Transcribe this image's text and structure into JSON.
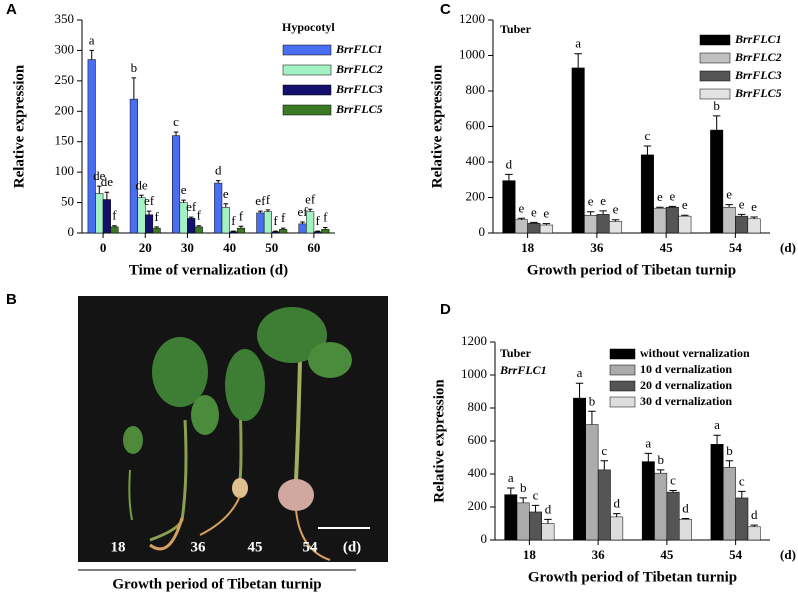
{
  "chart_data": [
    {
      "type": "bar",
      "panel_label": "A",
      "title": "Hypocotyl",
      "x_label": "Time of vernalization (d)",
      "y_label": "Relative expression",
      "categories": [
        "0",
        "20",
        "30",
        "40",
        "50",
        "60"
      ],
      "ylim": [
        0,
        350
      ],
      "yticks": [
        0,
        50,
        100,
        150,
        200,
        250,
        300,
        350
      ],
      "legend": "upper right",
      "series": [
        {
          "name": "BrrFLC1",
          "color": "#4a6ef2",
          "values": [
            285,
            220,
            160,
            82,
            33,
            15
          ],
          "errors": [
            15,
            35,
            6,
            4,
            3,
            3
          ],
          "letters": [
            "a",
            "b",
            "c",
            "d",
            "ef",
            "ef"
          ]
        },
        {
          "name": "BrrFLC2",
          "color": "#a2f2c4",
          "values": [
            65,
            58,
            50,
            42,
            35,
            35
          ],
          "errors": [
            12,
            4,
            4,
            6,
            3,
            4
          ],
          "letters": [
            "de",
            "de",
            "e",
            "e",
            "f",
            "ef"
          ]
        },
        {
          "name": "BrrFLC3",
          "color": "#14106e",
          "values": [
            55,
            30,
            24,
            2,
            2,
            2
          ],
          "errors": [
            12,
            6,
            2,
            1,
            1,
            1
          ],
          "letters": [
            "de",
            "ef",
            "ef",
            "f",
            "f",
            "f"
          ]
        },
        {
          "name": "BrrFLC5",
          "color": "#3b7a22",
          "values": [
            10,
            8,
            10,
            8,
            6,
            6
          ],
          "errors": [
            2,
            2,
            2,
            3,
            2,
            3
          ],
          "letters": [
            "f",
            "f",
            "f",
            "f",
            "f",
            "f"
          ]
        }
      ]
    },
    {
      "type": "photo",
      "panel_label": "B",
      "labels": [
        "18",
        "36",
        "45",
        "54",
        "(d)"
      ],
      "caption": "Growth period of Tibetan turnip"
    },
    {
      "type": "bar",
      "panel_label": "C",
      "title": "Tuber",
      "x_label": "Growth period of Tibetan turnip",
      "x_unit": "(d)",
      "y_label": "Relative expression",
      "categories": [
        "18",
        "36",
        "45",
        "54"
      ],
      "ylim": [
        0,
        1200
      ],
      "yticks": [
        0,
        200,
        400,
        600,
        800,
        1000,
        1200
      ],
      "legend": "upper right",
      "series": [
        {
          "name": "BrrFLC1",
          "color": "#000000",
          "values": [
            295,
            930,
            440,
            580
          ],
          "errors": [
            35,
            80,
            50,
            80
          ],
          "letters": [
            "d",
            "a",
            "c",
            "b"
          ]
        },
        {
          "name": "BrrFLC2",
          "color": "#c0c0c0",
          "values": [
            75,
            100,
            140,
            145
          ],
          "errors": [
            8,
            20,
            5,
            15
          ],
          "letters": [
            "e",
            "e",
            "e",
            "e"
          ]
        },
        {
          "name": "BrrFLC3",
          "color": "#555555",
          "values": [
            55,
            105,
            145,
            95
          ],
          "errors": [
            5,
            20,
            5,
            10
          ],
          "letters": [
            "e",
            "e",
            "e",
            "e"
          ]
        },
        {
          "name": "BrrFLC5",
          "color": "#e2e2e2",
          "values": [
            45,
            65,
            95,
            80
          ],
          "errors": [
            8,
            10,
            5,
            10
          ],
          "letters": [
            "e",
            "e",
            "e",
            "e"
          ]
        }
      ]
    },
    {
      "type": "bar",
      "panel_label": "D",
      "title": "Tuber",
      "subtitle": "BrrFLC1",
      "x_label": "Growth period of Tibetan turnip",
      "x_unit": "(d)",
      "y_label": "Relative expression",
      "categories": [
        "18",
        "36",
        "45",
        "54"
      ],
      "ylim": [
        0,
        1200
      ],
      "yticks": [
        0,
        200,
        400,
        600,
        800,
        1000,
        1200
      ],
      "legend": "upper right",
      "series": [
        {
          "name": "without vernalization",
          "color": "#000000",
          "values": [
            275,
            860,
            475,
            580
          ],
          "errors": [
            40,
            90,
            50,
            55
          ],
          "letters": [
            "a",
            "a",
            "a",
            "a"
          ]
        },
        {
          "name": "10 d vernalization",
          "color": "#ababab",
          "values": [
            225,
            700,
            405,
            440
          ],
          "errors": [
            30,
            80,
            20,
            40
          ],
          "letters": [
            "b",
            "b",
            "b",
            "b"
          ]
        },
        {
          "name": "20 d vernalization",
          "color": "#555555",
          "values": [
            170,
            425,
            290,
            255
          ],
          "errors": [
            40,
            55,
            10,
            40
          ],
          "letters": [
            "c",
            "c",
            "c",
            "c"
          ]
        },
        {
          "name": "30 d vernalization",
          "color": "#dddddd",
          "values": [
            100,
            140,
            125,
            80
          ],
          "errors": [
            25,
            20,
            5,
            10
          ],
          "letters": [
            "d",
            "d",
            "d",
            "d"
          ]
        }
      ]
    }
  ]
}
